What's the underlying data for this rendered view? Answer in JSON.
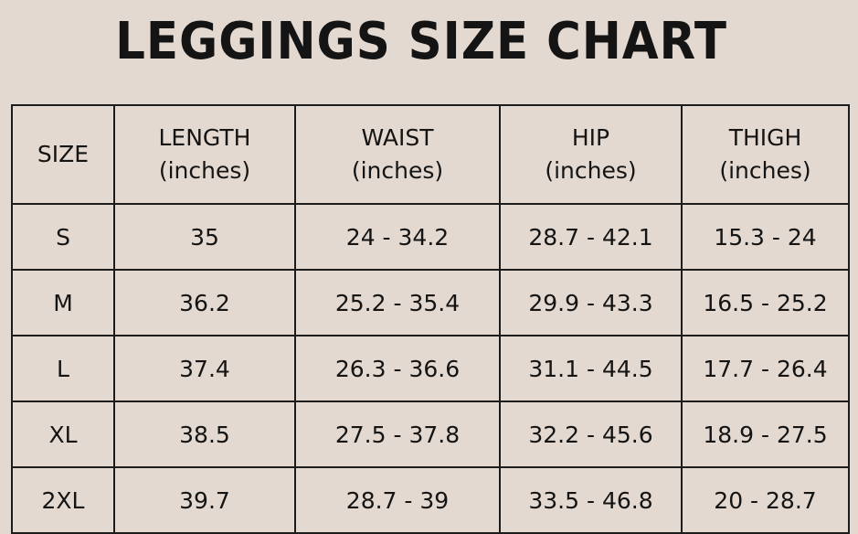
{
  "title": "LEGGINGS SIZE CHART",
  "chart_data": {
    "type": "table",
    "title": "LEGGINGS SIZE CHART",
    "columns": [
      {
        "label": "SIZE",
        "unit": ""
      },
      {
        "label": "LENGTH",
        "unit": "(inches)"
      },
      {
        "label": "WAIST",
        "unit": "(inches)"
      },
      {
        "label": "HIP",
        "unit": "(inches)"
      },
      {
        "label": "THIGH",
        "unit": "(inches)"
      }
    ],
    "rows": [
      [
        "S",
        "35",
        "24 - 34.2",
        "28.7 - 42.1",
        "15.3 - 24"
      ],
      [
        "M",
        "36.2",
        "25.2 - 35.4",
        "29.9 - 43.3",
        "16.5 - 25.2"
      ],
      [
        "L",
        "37.4",
        "26.3 - 36.6",
        "31.1 - 44.5",
        "17.7 - 26.4"
      ],
      [
        "XL",
        "38.5",
        "27.5 - 37.8",
        "32.2 - 45.6",
        "18.9 - 27.5"
      ],
      [
        "2XL",
        "39.7",
        "28.7 - 39",
        "33.5 - 46.8",
        "20 - 28.7"
      ]
    ],
    "colors": {
      "background": "#e4d9d0",
      "text": "#141414",
      "grid": "#1c1c1c"
    }
  }
}
